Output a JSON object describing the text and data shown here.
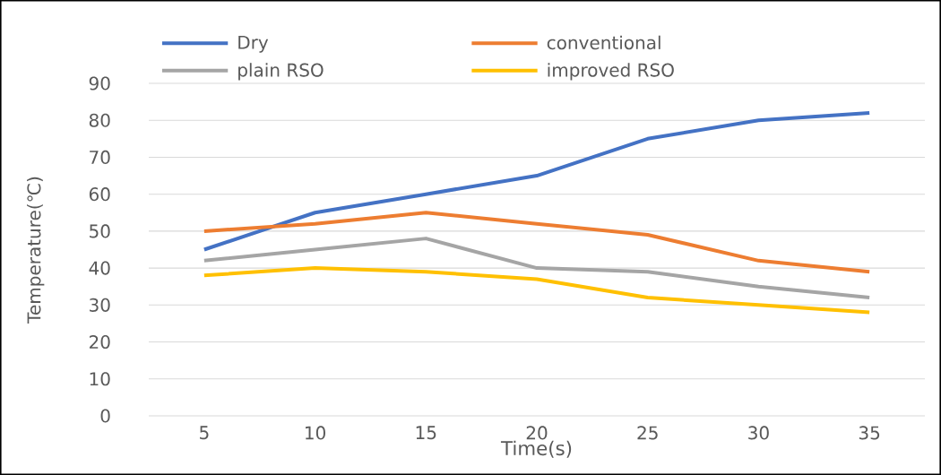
{
  "chart_data": {
    "type": "line",
    "xlabel": "Time(s)",
    "ylabel": "Temperature(℃)",
    "categories": [
      "5",
      "10",
      "15",
      "20",
      "25",
      "30",
      "35"
    ],
    "series": [
      {
        "name": "Dry",
        "color": "#4472c4",
        "values": [
          45,
          55,
          60,
          65,
          75,
          80,
          82
        ]
      },
      {
        "name": "conventional",
        "color": "#ed7d31",
        "values": [
          50,
          52,
          55,
          52,
          49,
          42,
          39
        ]
      },
      {
        "name": "plain RSO",
        "color": "#a5a5a5",
        "values": [
          42,
          45,
          48,
          40,
          39,
          35,
          32
        ]
      },
      {
        "name": "improved RSO",
        "color": "#ffc000",
        "values": [
          38,
          40,
          39,
          37,
          32,
          30,
          28
        ]
      }
    ],
    "ylim": [
      0,
      90
    ],
    "yticks": [
      0,
      10,
      20,
      30,
      40,
      50,
      60,
      70,
      80,
      90
    ],
    "grid": "y",
    "legend": "top",
    "marker": "none",
    "line_style": "solid"
  }
}
